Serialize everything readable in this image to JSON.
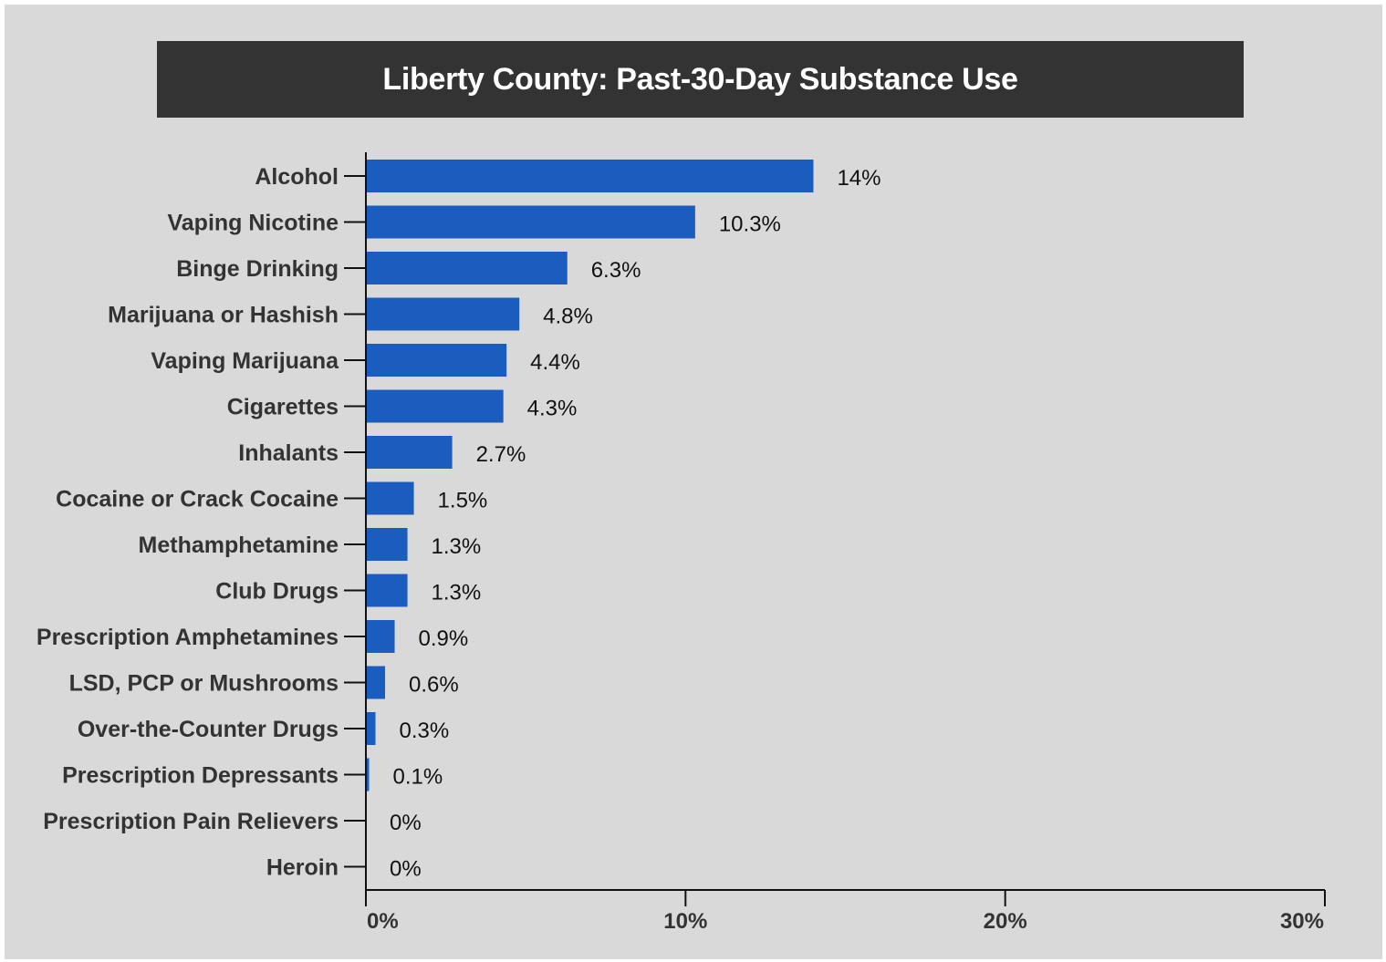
{
  "chart_data": {
    "type": "bar",
    "orientation": "horizontal",
    "title": "Liberty County: Past-30-Day Substance Use",
    "categories": [
      "Alcohol",
      "Vaping Nicotine",
      "Binge Drinking",
      "Marijuana or Hashish",
      "Vaping Marijuana",
      "Cigarettes",
      "Inhalants",
      "Cocaine or Crack Cocaine",
      "Methamphetamine",
      "Club Drugs",
      "Prescription Amphetamines",
      "LSD, PCP or Mushrooms",
      "Over-the-Counter Drugs",
      "Prescription Depressants",
      "Prescription Pain Relievers",
      "Heroin"
    ],
    "values": [
      14,
      10.3,
      6.3,
      4.8,
      4.4,
      4.3,
      2.7,
      1.5,
      1.3,
      1.3,
      0.9,
      0.6,
      0.3,
      0.1,
      0,
      0
    ],
    "data_labels": [
      "14%",
      "10.3%",
      "6.3%",
      "4.8%",
      "4.4%",
      "4.3%",
      "2.7%",
      "1.5%",
      "1.3%",
      "1.3%",
      "0.9%",
      "0.6%",
      "0.3%",
      "0.1%",
      "0%",
      "0%"
    ],
    "xlim": [
      0,
      30
    ],
    "xticks": [
      0,
      10,
      20,
      30
    ],
    "xtick_labels": [
      "0%",
      "10%",
      "20%",
      "30%"
    ],
    "xlabel": "",
    "ylabel": "",
    "grid": false,
    "legend": "none",
    "bar_color": "#1a5dbe"
  },
  "colors": {
    "panel_background": "#d9d9d9",
    "title_background": "#333333",
    "title_text": "#ffffff",
    "axis": "#111111"
  }
}
